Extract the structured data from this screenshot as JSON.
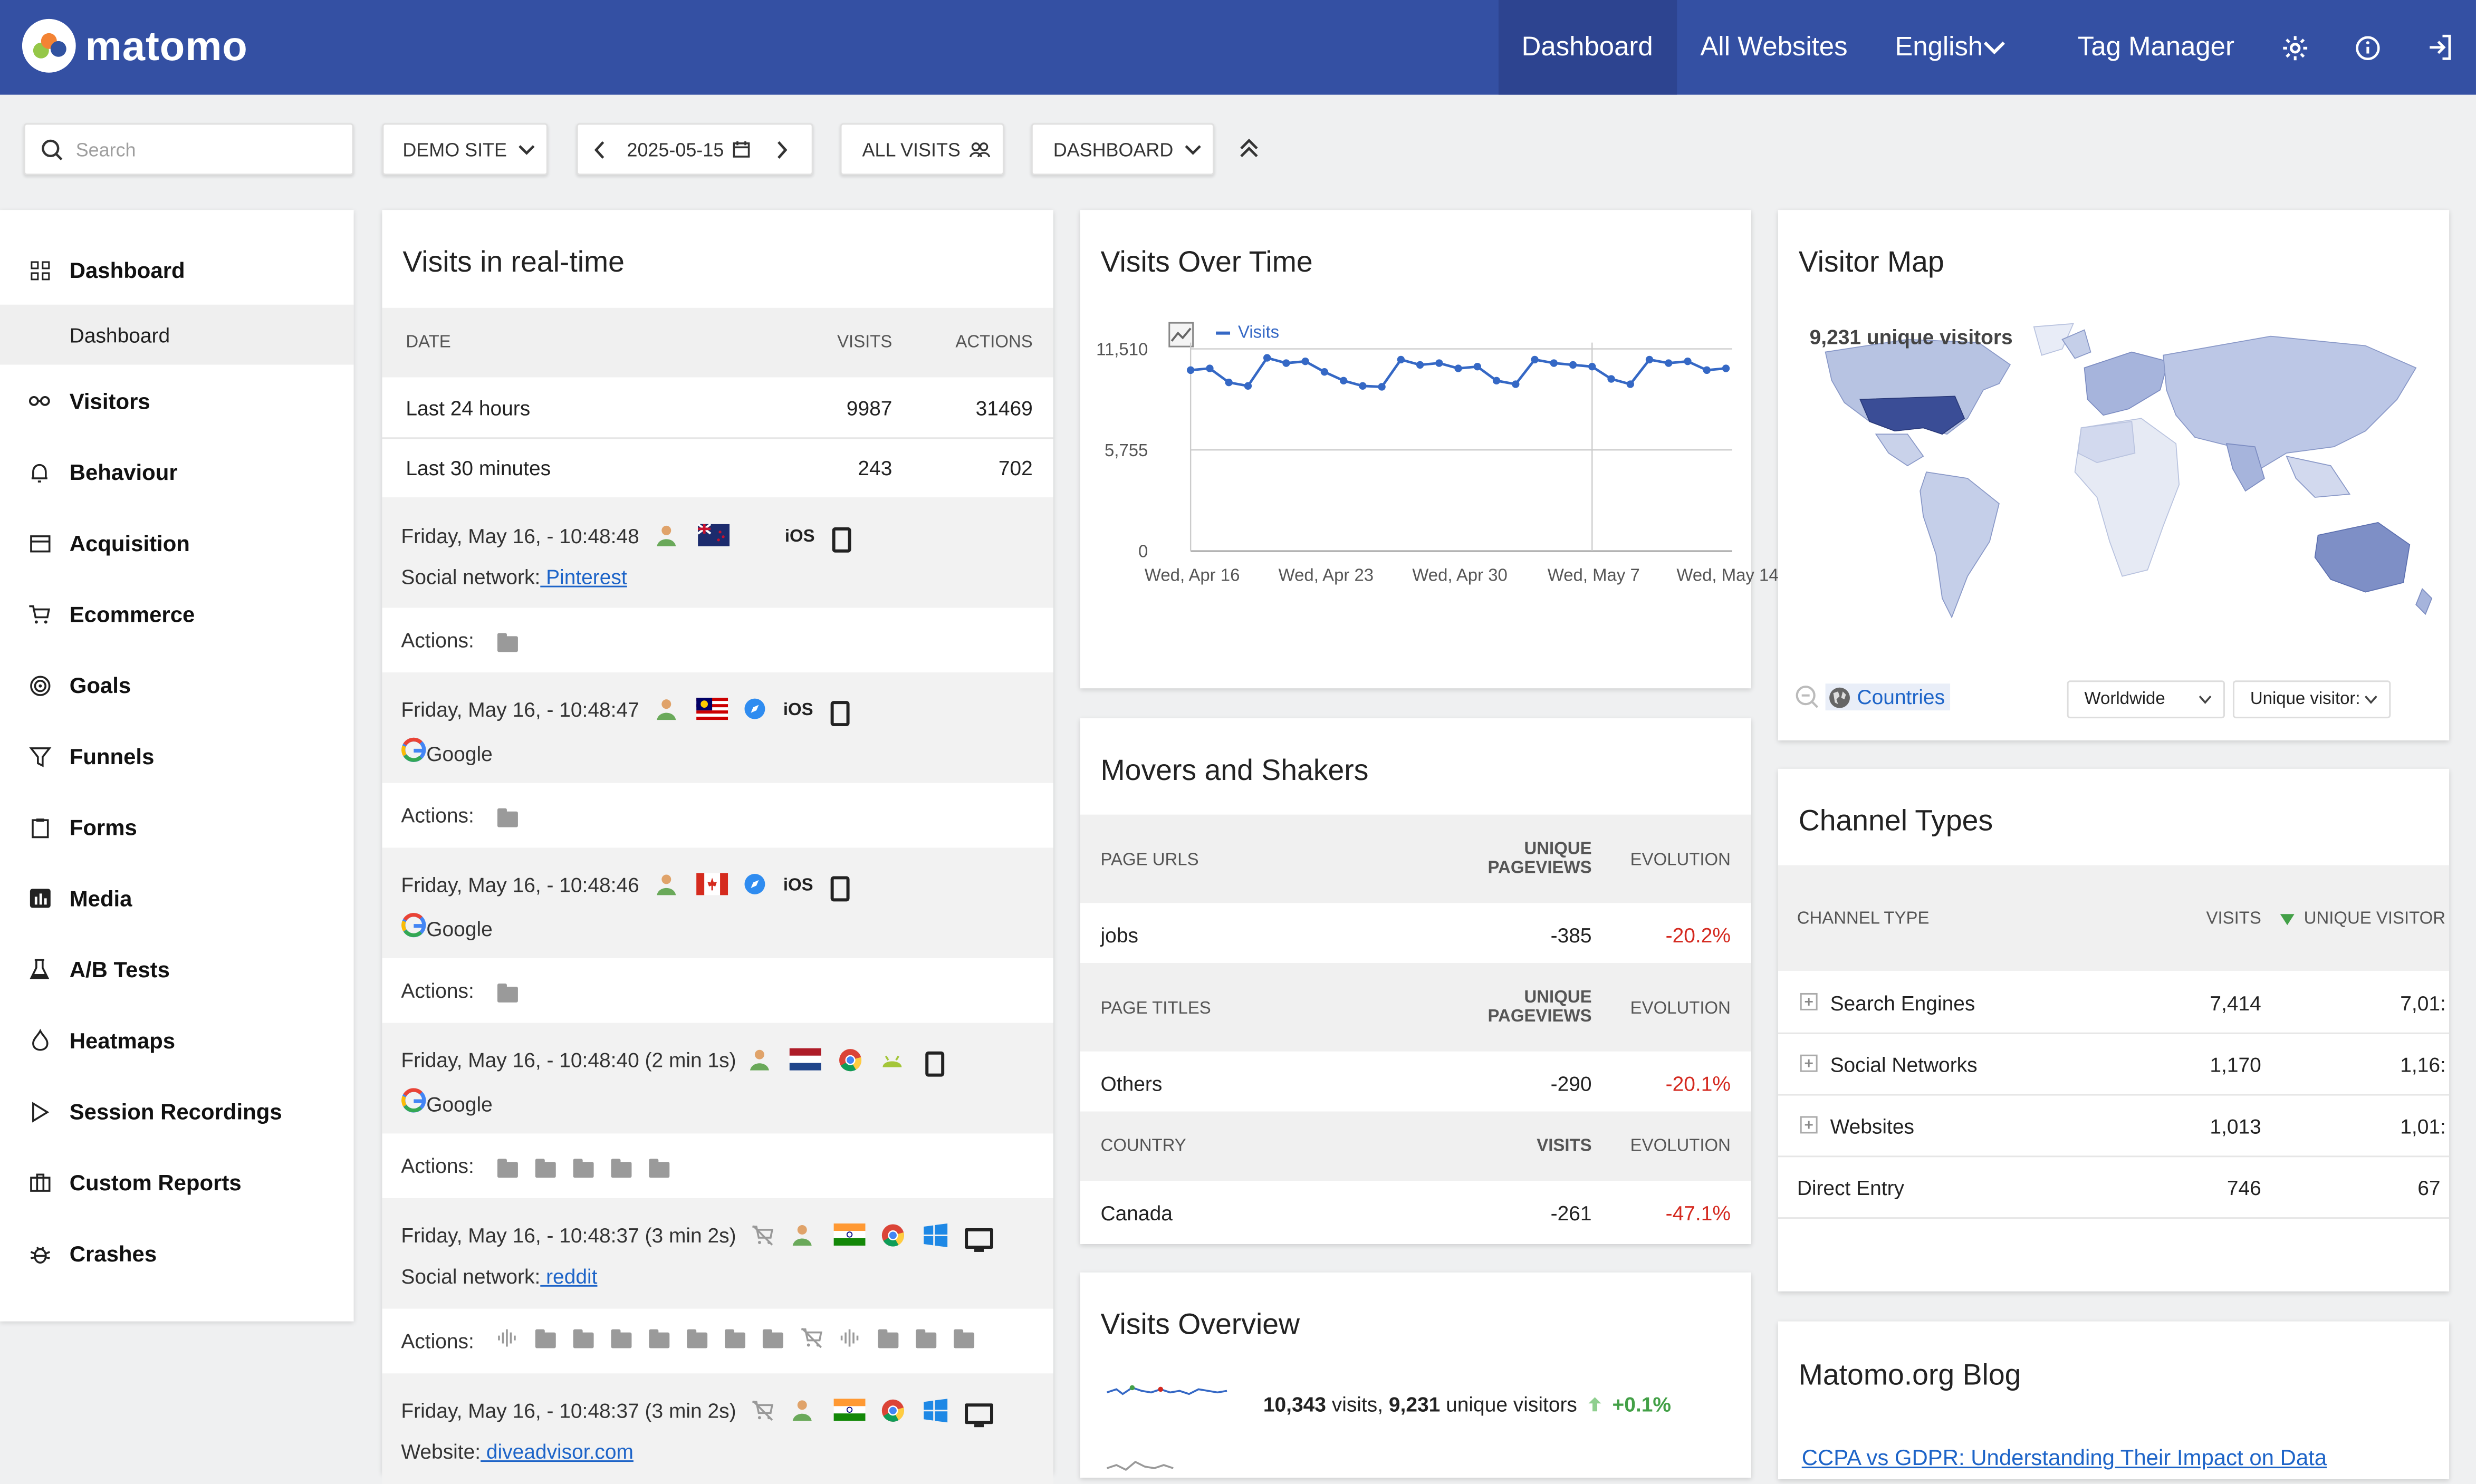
{
  "topbar": {
    "brand": "matomo",
    "nav": [
      "Dashboard",
      "All Websites",
      "English",
      "Tag Manager"
    ]
  },
  "controls": {
    "search_placeholder": "Search",
    "site": "DEMO SITE",
    "date": "2025-05-15",
    "segment": "ALL VISITS",
    "dashboard": "DASHBOARD"
  },
  "sidebar": {
    "items": [
      "Dashboard",
      "Visitors",
      "Behaviour",
      "Acquisition",
      "Ecommerce",
      "Goals",
      "Funnels",
      "Forms",
      "Media",
      "A/B Tests",
      "Heatmaps",
      "Session Recordings",
      "Custom Reports",
      "Crashes"
    ],
    "sub_item": "Dashboard"
  },
  "realtime": {
    "title": "Visits in real-time",
    "headers": [
      "DATE",
      "VISITS",
      "ACTIONS"
    ],
    "rows": [
      {
        "label": "Last 24 hours",
        "visits": "9987",
        "actions": "31469"
      },
      {
        "label": "Last 30 minutes",
        "visits": "243",
        "actions": "702"
      }
    ],
    "visits": [
      {
        "time": "Friday, May 16, - 10:48:48",
        "source_prefix": "Social network:",
        "source": " Pinterest",
        "os": "iOS"
      },
      {
        "time": "Friday, May 16, - 10:48:47",
        "source": "Google",
        "os": "iOS"
      },
      {
        "time": "Friday, May 16, - 10:48:46",
        "source": "Google",
        "os": "iOS"
      },
      {
        "time": "Friday, May 16, - 10:48:40 (2 min 1s)",
        "source": "Google"
      },
      {
        "time": "Friday, May 16, - 10:48:37 (3 min 2s)",
        "source_prefix": "Social network:",
        "source": " reddit"
      },
      {
        "time": "Friday, May 16, - 10:48:37 (3 min 2s)",
        "source_prefix": "Website:",
        "source": " diveadvisor.com"
      }
    ],
    "actions_label": "Actions:"
  },
  "visits_over_time": {
    "title": "Visits Over Time",
    "legend": "Visits"
  },
  "chart_data": {
    "type": "line",
    "series": [
      {
        "name": "Visits",
        "values": [
          10300,
          10400,
          9600,
          9400,
          11000,
          10700,
          10800,
          10200,
          9700,
          9400,
          9350,
          10900,
          10600,
          10700,
          10400,
          10500,
          9700,
          9500,
          10900,
          10700,
          10600,
          10500,
          9800,
          9500,
          10900,
          10700,
          10800,
          10300,
          10400
        ]
      }
    ],
    "x_tick_labels": [
      "Wed, Apr 16",
      "Wed, Apr 23",
      "Wed, Apr 30",
      "Wed, May 7",
      "Wed, May 14"
    ],
    "y_tick_labels": [
      "11,510",
      "5,755",
      "0"
    ],
    "ylim": [
      0,
      11510
    ]
  },
  "movers": {
    "title": "Movers and Shakers",
    "sections": [
      {
        "h1": "PAGE URLS",
        "h2a": "UNIQUE",
        "h2b": "PAGEVIEWS",
        "h3": "EVOLUTION",
        "label": "jobs",
        "value": "-385",
        "evo": "-20.2%"
      },
      {
        "h1": "PAGE TITLES",
        "h2a": "UNIQUE",
        "h2b": "PAGEVIEWS",
        "h3": "EVOLUTION",
        "label": "Others",
        "value": "-290",
        "evo": "-20.1%"
      },
      {
        "h1": "COUNTRY",
        "h2a": "",
        "h2b": "VISITS",
        "h3": "EVOLUTION",
        "label": "Canada",
        "value": "-261",
        "evo": "-47.1%"
      }
    ]
  },
  "visits_overview": {
    "title": "Visits Overview",
    "visits_num": "10,343",
    "visits_label": " visits, ",
    "uniq_num": "9,231",
    "uniq_label": " unique visitors",
    "change": "+0.1%"
  },
  "visitor_map": {
    "title": "Visitor Map",
    "summary": "9,231 unique visitors",
    "countries_link": "Countries",
    "region": "Worldwide",
    "metric": "Unique visitor:"
  },
  "channel_types": {
    "title": "Channel Types",
    "headers": [
      "CHANNEL TYPE",
      "VISITS",
      "UNIQUE VISITOR"
    ],
    "rows": [
      {
        "label": "Search Engines",
        "visits": "7,414",
        "unique": "7,01:",
        "expandable": true
      },
      {
        "label": "Social Networks",
        "visits": "1,170",
        "unique": "1,16:",
        "expandable": true
      },
      {
        "label": "Websites",
        "visits": "1,013",
        "unique": "1,01:",
        "expandable": true
      },
      {
        "label": "Direct Entry",
        "visits": "746",
        "unique": "67",
        "expandable": false
      }
    ]
  },
  "blog": {
    "title": "Matomo.org Blog",
    "post": "CCPA vs GDPR: Understanding Their Impact on Data"
  },
  "colors": {
    "topbar": "#3450a3",
    "accent": "#1d64c8",
    "negative": "#d4291f",
    "positive": "#43a047"
  }
}
